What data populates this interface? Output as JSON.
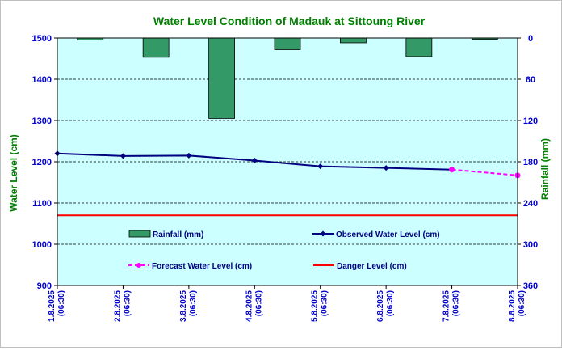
{
  "chart_data": {
    "type": "bar+line",
    "title": "Water Level Condition of Madauk at Sittoung River",
    "y_left_label": "Water Level (cm)",
    "y_right_label": "Rainfall (mm)",
    "y_left_range": [
      900,
      1500
    ],
    "y_left_ticks": [
      "900",
      "1000",
      "1100",
      "1200",
      "1300",
      "1400",
      "1500"
    ],
    "y_right_range": [
      0,
      360
    ],
    "y_right_inverted": true,
    "y_right_ticks": [
      "0",
      "60",
      "120",
      "180",
      "240",
      "300",
      "360"
    ],
    "categories": [
      {
        "date": "1.8.2025",
        "time": "(06:30)"
      },
      {
        "date": "2.8.2025",
        "time": "(06:30)"
      },
      {
        "date": "3.8.2025",
        "time": "(06:30)"
      },
      {
        "date": "4.8.2025",
        "time": "(06:30)"
      },
      {
        "date": "5.8.2025",
        "time": "(06:30)"
      },
      {
        "date": "6.8.2025",
        "time": "(06:30)"
      },
      {
        "date": "7.8.2025",
        "time": "(06:30)"
      },
      {
        "date": "8.8.2025",
        "time": "(06:30)"
      }
    ],
    "rainfall": {
      "name": "Rainfall (mm)",
      "color": "#339966",
      "values": [
        3,
        28,
        117,
        17,
        7,
        27,
        2
      ]
    },
    "observed": {
      "name": "Observed Water Level (cm)",
      "color": "#000080",
      "values": [
        1220,
        1214,
        1215,
        1203,
        1189,
        1185,
        1181,
        null
      ]
    },
    "forecast": {
      "name": "Forecast Water Level (cm)",
      "color": "#ff00ff",
      "values": [
        null,
        null,
        null,
        null,
        null,
        null,
        1181,
        1167
      ]
    },
    "danger": {
      "name": "Danger Level (cm)",
      "color": "#ff0000",
      "value": 1070
    },
    "grid": "horizontal dashed",
    "plot_background": "#ccffff",
    "title_color": "#008000",
    "axis_label_color": "#008000",
    "tick_label_color": "#0000cc"
  }
}
